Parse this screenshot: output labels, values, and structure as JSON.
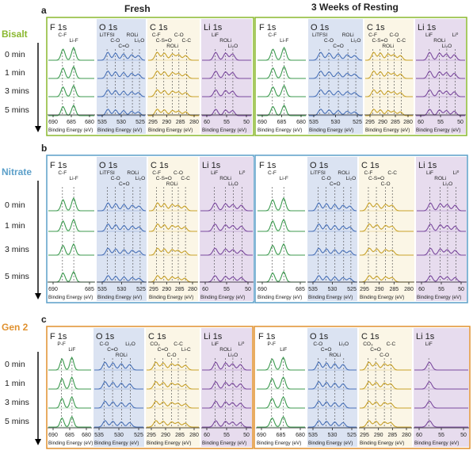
{
  "headers": {
    "fresh": "Fresh",
    "resting": "3 Weeks of Resting"
  },
  "time_labels": [
    "0 min",
    "1 min",
    "3 mins",
    "5 mins"
  ],
  "xaxis_label": "Binding Energy (eV)",
  "colors": {
    "F": "#3c9a4f",
    "O": "#4a72b8",
    "C": "#c8a22b",
    "Li": "#7b4a9e",
    "orange": "#e0912f"
  },
  "chart_data": [
    {
      "panel": "a",
      "type": "line",
      "electrolyte": "Bisalt",
      "color": "#8ab82f",
      "groups": [
        {
          "name": "Fresh",
          "spectra": [
            {
              "element": "F",
              "title": "F 1s",
              "ticks": [
                "690",
                "685",
                "680"
              ],
              "peaks": [
                "C-F",
                "Li-F"
              ]
            },
            {
              "element": "O",
              "title": "O 1s",
              "ticks": [
                "535",
                "530",
                "525"
              ],
              "peaks": [
                "LiTFSI",
                "C-O",
                "C=O",
                "ROLi",
                "Li2O"
              ]
            },
            {
              "element": "C",
              "title": "C 1s",
              "ticks": [
                "295",
                "290",
                "285",
                "280"
              ],
              "peaks": [
                "C-F",
                "C-S=O",
                "ROLi",
                "C-O",
                "C-C"
              ]
            },
            {
              "element": "Li",
              "title": "Li 1s",
              "ticks": [
                "60",
                "55",
                "50"
              ],
              "peaks": [
                "LiF",
                "ROLi",
                "Li2O"
              ]
            }
          ]
        },
        {
          "name": "3 Weeks of Resting",
          "spectra": [
            {
              "element": "F",
              "title": "F 1s",
              "ticks": [
                "690",
                "685",
                "680"
              ],
              "peaks": [
                "C-F",
                "Li-F"
              ]
            },
            {
              "element": "O",
              "title": "O 1s",
              "ticks": [
                "535",
                "530",
                "525"
              ],
              "peaks": [
                "LiTFSI",
                "C-O",
                "C=O",
                "ROLi",
                "Li2O"
              ]
            },
            {
              "element": "C",
              "title": "C 1s",
              "ticks": [
                "295",
                "290",
                "285",
                "280"
              ],
              "peaks": [
                "C-F",
                "C-S=O",
                "ROLi",
                "C-O",
                "C-C"
              ]
            },
            {
              "element": "Li",
              "title": "Li 1s",
              "ticks": [
                "60",
                "55",
                "50"
              ],
              "peaks": [
                "LiF",
                "ROLi",
                "Li2O",
                "Li0"
              ]
            }
          ]
        }
      ]
    },
    {
      "panel": "b",
      "type": "line",
      "electrolyte": "Nitrate",
      "color": "#5b9fc9",
      "groups": [
        {
          "name": "Fresh",
          "spectra": [
            {
              "element": "F",
              "title": "F 1s",
              "ticks": [
                "690",
                "685"
              ],
              "peaks": [
                "C-F",
                "Li-F"
              ]
            },
            {
              "element": "O",
              "title": "O 1s",
              "ticks": [
                "535",
                "530",
                "525"
              ],
              "peaks": [
                "LiTFSI",
                "C-O",
                "C=O",
                "ROLi",
                "Li2O"
              ]
            },
            {
              "element": "C",
              "title": "C 1s",
              "ticks": [
                "295",
                "290",
                "285",
                "280"
              ],
              "peaks": [
                "C-F",
                "C-S=O",
                "ROLi",
                "C-O",
                "C-C"
              ]
            },
            {
              "element": "Li",
              "title": "Li 1s",
              "ticks": [
                "60",
                "55",
                "50"
              ],
              "peaks": [
                "LiF",
                "ROLi",
                "Li2O",
                "Li0"
              ]
            }
          ]
        },
        {
          "name": "3 Weeks of Resting",
          "spectra": [
            {
              "element": "F",
              "title": "F 1s",
              "ticks": [
                "690",
                "685"
              ],
              "peaks": [
                "C-F",
                "Li-F"
              ]
            },
            {
              "element": "O",
              "title": "O 1s",
              "ticks": [
                "535",
                "530",
                "525"
              ],
              "peaks": [
                "LiTFSI",
                "C-O",
                "C=O",
                "ROLi",
                "Li2O"
              ]
            },
            {
              "element": "C",
              "title": "C 1s",
              "ticks": [
                "295",
                "290",
                "285",
                "280"
              ],
              "peaks": [
                "C-F",
                "C-S=O",
                "C-O",
                "C-C"
              ]
            },
            {
              "element": "Li",
              "title": "Li 1s",
              "ticks": [
                "60",
                "55",
                "50"
              ],
              "peaks": [
                "LiF",
                "ROLi",
                "Li2O",
                "Li0"
              ]
            }
          ]
        }
      ]
    },
    {
      "panel": "c",
      "type": "line",
      "electrolyte": "Gen 2",
      "color": "#e0912f",
      "groups": [
        {
          "name": "Fresh",
          "spectra": [
            {
              "element": "F",
              "title": "F 1s",
              "ticks": [
                "690",
                "685",
                "680"
              ],
              "peaks": [
                "P-F",
                "LiF"
              ]
            },
            {
              "element": "O",
              "title": "O 1s",
              "ticks": [
                "535",
                "530",
                "525"
              ],
              "peaks": [
                "C-O",
                "C=O",
                "ROLi",
                "Li2O"
              ]
            },
            {
              "element": "C",
              "title": "C 1s",
              "ticks": [
                "295",
                "290",
                "285",
                "280"
              ],
              "peaks": [
                "CO3",
                "C=O",
                "C-O",
                "C-C",
                "Li-C"
              ]
            },
            {
              "element": "Li",
              "title": "Li 1s",
              "ticks": [
                "60",
                "55",
                "50"
              ],
              "peaks": [
                "LiF",
                "ROLi",
                "Li2O",
                "Li0"
              ]
            }
          ]
        },
        {
          "name": "3 Weeks of Resting",
          "spectra": [
            {
              "element": "F",
              "title": "F 1s",
              "ticks": [
                "690",
                "685",
                "680"
              ],
              "peaks": [
                "P-F",
                "LiF"
              ]
            },
            {
              "element": "O",
              "title": "O 1s",
              "ticks": [
                "535",
                "530",
                "525"
              ],
              "peaks": [
                "C-O",
                "C=O",
                "ROLi",
                "Li2O"
              ]
            },
            {
              "element": "C",
              "title": "C 1s",
              "ticks": [
                "295",
                "290",
                "285",
                "280"
              ],
              "peaks": [
                "CO3",
                "C=O",
                "C-O",
                "C-C"
              ]
            },
            {
              "element": "Li",
              "title": "Li 1s",
              "ticks": [
                "60",
                "55",
                "50"
              ],
              "peaks": [
                "LiF"
              ]
            }
          ]
        }
      ]
    }
  ]
}
